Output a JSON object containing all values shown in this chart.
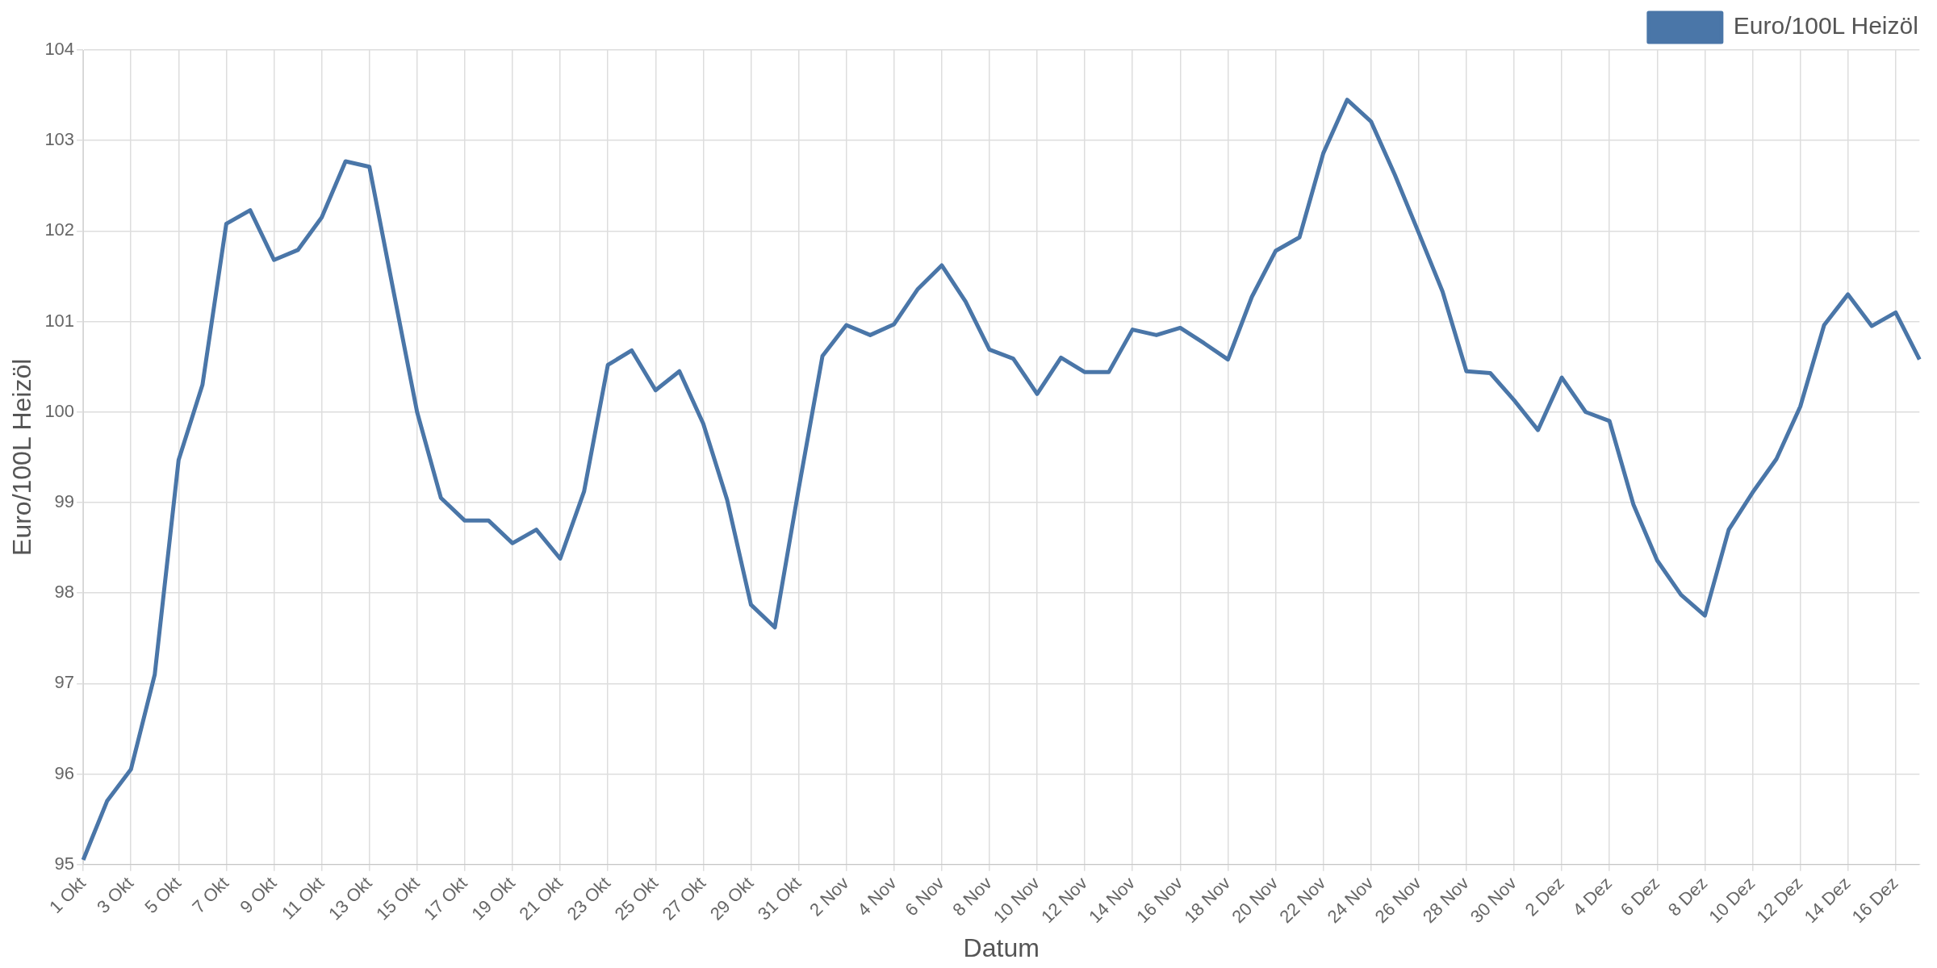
{
  "chart_data": {
    "type": "line",
    "xlabel": "Datum",
    "ylabel": "Euro/100L Heizöl",
    "categories": [
      "1 Okt",
      null,
      "3 Okt",
      null,
      "5 Okt",
      null,
      "7 Okt",
      null,
      "9 Okt",
      null,
      "11 Okt",
      null,
      "13 Okt",
      null,
      "15 Okt",
      null,
      "17 Okt",
      null,
      "19 Okt",
      null,
      "21 Okt",
      null,
      "23 Okt",
      null,
      "25 Okt",
      null,
      "27 Okt",
      null,
      "29 Okt",
      null,
      "31 Okt",
      null,
      "2 Nov",
      null,
      "4 Nov",
      null,
      "6 Nov",
      null,
      "8 Nov",
      null,
      "10 Nov",
      null,
      "12 Nov",
      null,
      "14 Nov",
      null,
      "16 Nov",
      null,
      "18 Nov",
      null,
      "20 Nov",
      null,
      "22 Nov",
      null,
      "24 Nov",
      null,
      "26 Nov",
      null,
      "28 Nov",
      null,
      "30 Nov",
      null,
      "2 Dez",
      null,
      "4 Dez",
      null,
      "6 Dez",
      null,
      "8 Dez",
      null,
      "10 Dez",
      null,
      "12 Dez",
      null,
      "14 Dez",
      null,
      "16 Dez",
      null
    ],
    "series": [
      {
        "name": "Euro/100L Heizöl",
        "color": "#4a76a8",
        "values": [
          95.05,
          95.7,
          96.05,
          97.1,
          99.47,
          100.3,
          102.08,
          102.23,
          101.68,
          101.79,
          102.15,
          102.77,
          102.71,
          101.35,
          100.0,
          99.05,
          98.8,
          98.8,
          98.55,
          98.7,
          98.38,
          99.12,
          100.52,
          100.68,
          100.24,
          100.45,
          99.87,
          99.03,
          97.87,
          97.62,
          99.15,
          100.62,
          100.96,
          100.85,
          100.97,
          101.36,
          101.62,
          101.22,
          100.69,
          100.59,
          100.2,
          100.6,
          100.44,
          100.44,
          100.91,
          100.85,
          100.93,
          100.76,
          100.58,
          101.27,
          101.78,
          101.93,
          102.86,
          103.45,
          103.21,
          102.62,
          101.98,
          101.33,
          100.45,
          100.43,
          100.13,
          99.8,
          100.38,
          100.0,
          99.9,
          98.98,
          98.36,
          97.98,
          97.75,
          98.7,
          99.11,
          99.48,
          100.06,
          100.96,
          101.3,
          100.95,
          101.1,
          100.58
        ]
      }
    ],
    "ylim": [
      95,
      104
    ],
    "yticks": [
      95,
      96,
      97,
      98,
      99,
      100,
      101,
      102,
      103,
      104
    ],
    "grid": true,
    "legend": "top right",
    "marker": "none",
    "line_style": "solid"
  }
}
